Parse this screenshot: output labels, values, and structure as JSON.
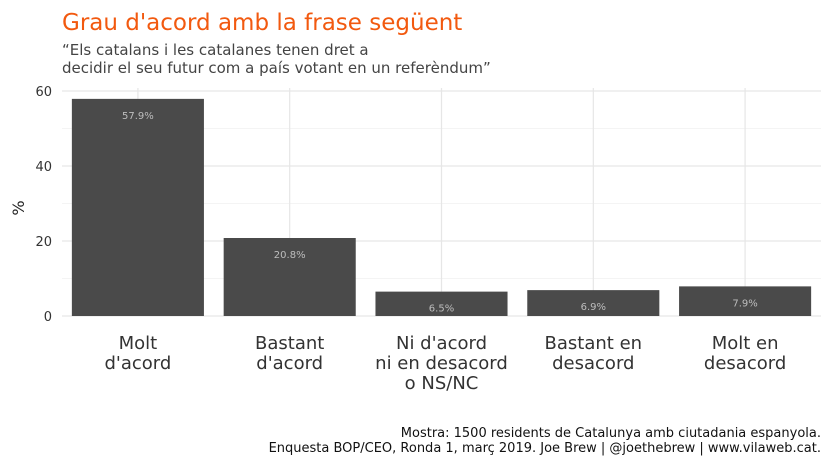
{
  "chart_data": {
    "type": "bar",
    "title": "Grau d'acord amb la frase següent",
    "subtitle": [
      "“Els catalans i les catalanes tenen dret a",
      "decidir el seu futur com a país votant en un referèndum”"
    ],
    "ylabel": "%",
    "xlabel": "",
    "categories": [
      [
        "Molt",
        "d'acord"
      ],
      [
        "Bastant",
        "d'acord"
      ],
      [
        "Ni d'acord",
        "ni en desacord",
        "o NS/NC"
      ],
      [
        "Bastant en",
        "desacord"
      ],
      [
        "Molt en",
        "desacord"
      ]
    ],
    "values": [
      57.9,
      20.8,
      6.5,
      6.9,
      7.9
    ],
    "data_labels": [
      "57.9%",
      "20.8%",
      "6.5%",
      "6.9%",
      "7.9%"
    ],
    "ylim": [
      0,
      60
    ],
    "yticks": [
      0,
      20,
      40,
      60
    ],
    "grid": true,
    "bar_color": "#4a4a4a",
    "title_color": "#f2590f",
    "caption": [
      "Mostra: 1500 residents de Catalunya amb ciutadania espanyola.",
      "Enquesta BOP/CEO, Ronda 1, març 2019. Joe Brew | @joethebrew | www.vilaweb.cat."
    ]
  }
}
